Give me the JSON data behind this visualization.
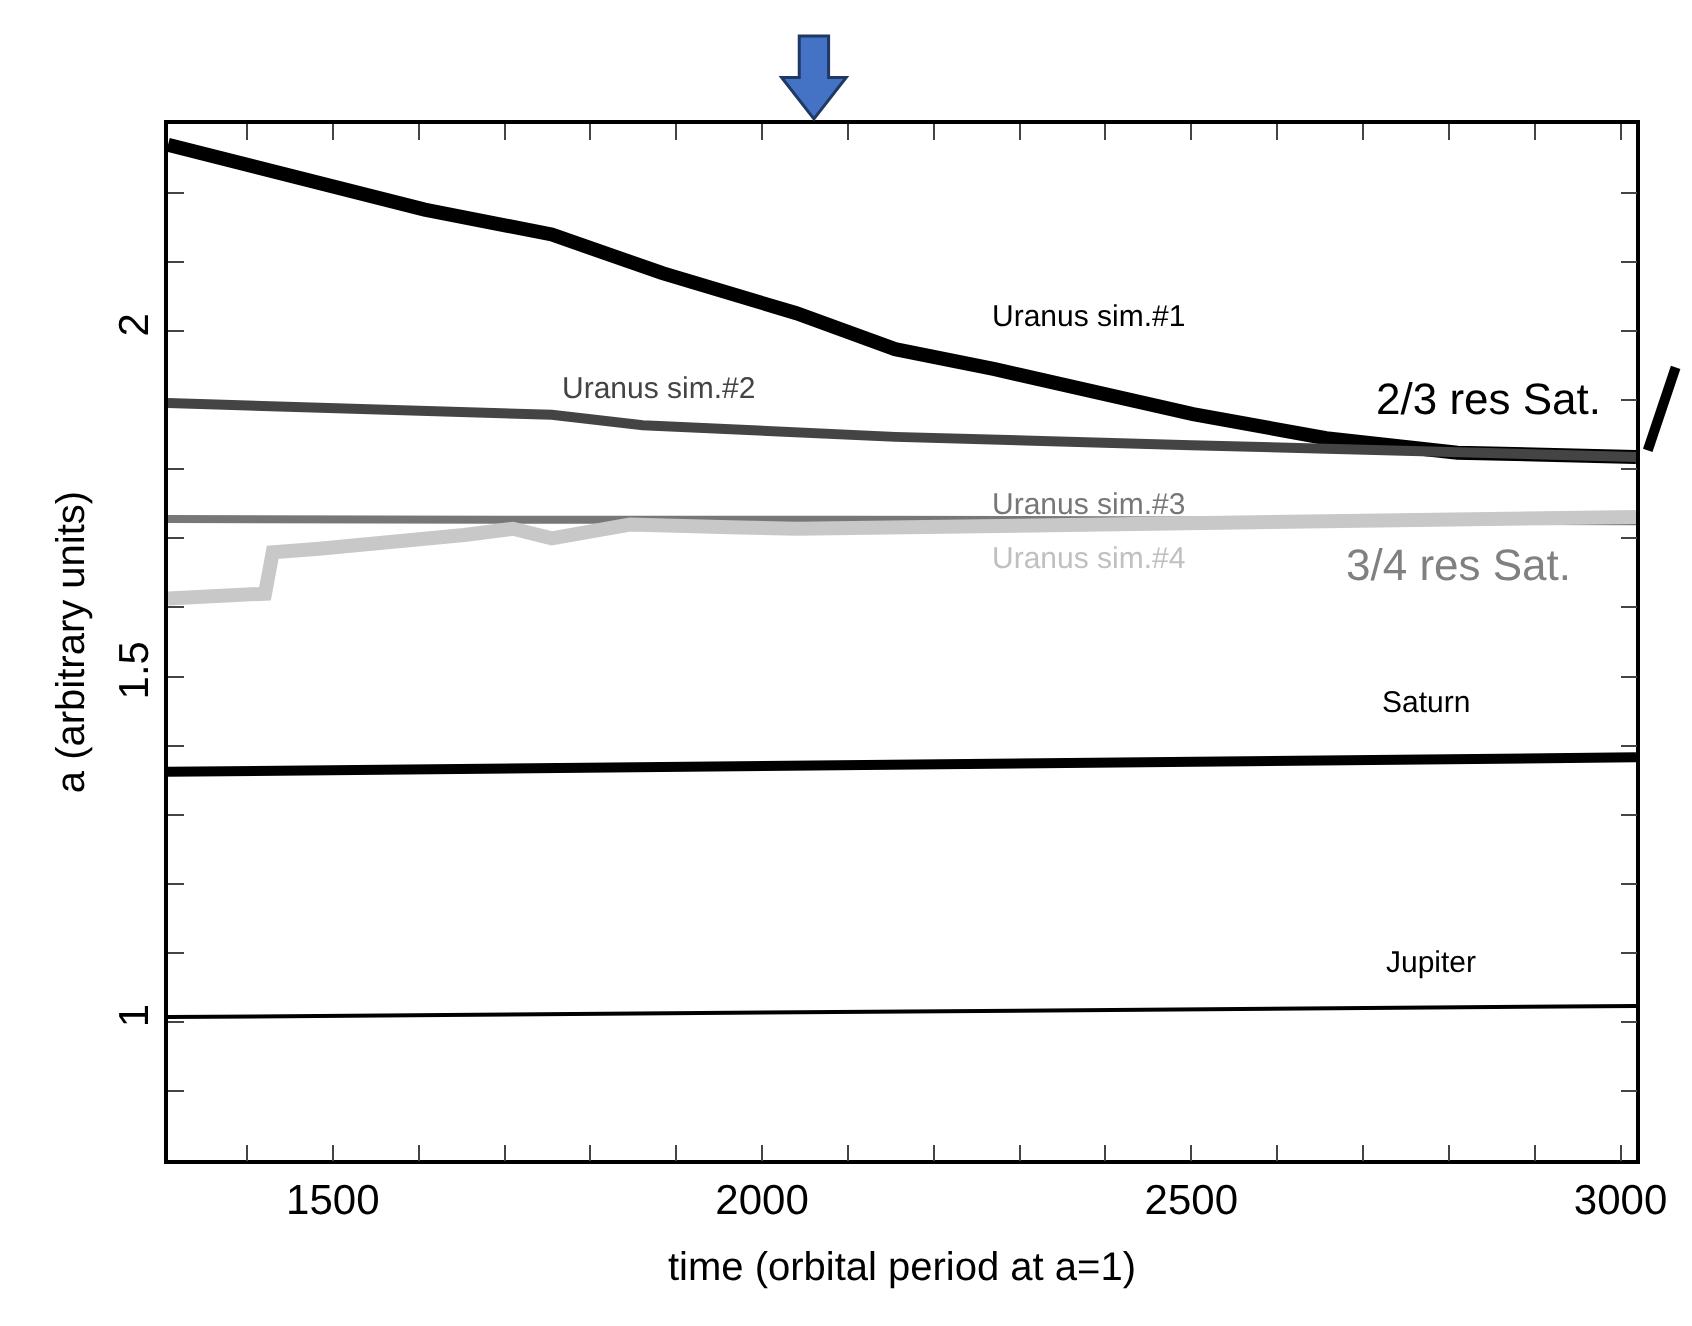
{
  "chart_data": {
    "type": "line",
    "xlabel": "time (orbital period at a=1)",
    "ylabel": "a (arbitrary units)",
    "xlim": [
      1308,
      3018
    ],
    "ylim": [
      0.8,
      2.3
    ],
    "xticks": [
      {
        "value": 1400,
        "label": null
      },
      1500,
      {
        "value": 1600,
        "label": null
      },
      {
        "value": 1700,
        "label": null
      },
      {
        "value": 1800,
        "label": null
      },
      {
        "value": 1900,
        "label": null
      },
      2000,
      {
        "value": 2100,
        "label": null
      },
      {
        "value": 2200,
        "label": null
      },
      {
        "value": 2300,
        "label": null
      },
      {
        "value": 2400,
        "label": null
      },
      2500,
      {
        "value": 2600,
        "label": null
      },
      {
        "value": 2700,
        "label": null
      },
      {
        "value": 2800,
        "label": null
      },
      {
        "value": 2900,
        "label": null
      },
      3000
    ],
    "yticks": [
      {
        "value": 0.9,
        "label": null
      },
      1,
      {
        "value": 1.1,
        "label": null
      },
      {
        "value": 1.2,
        "label": null
      },
      {
        "value": 1.3,
        "label": null
      },
      {
        "value": 1.4,
        "label": null
      },
      1.5,
      {
        "value": 1.6,
        "label": null
      },
      {
        "value": 1.7,
        "label": null
      },
      {
        "value": 1.8,
        "label": null
      },
      {
        "value": 1.9,
        "label": null
      },
      2,
      {
        "value": 2.1,
        "label": null
      },
      {
        "value": 2.2,
        "label": null
      }
    ],
    "legend": false,
    "marker": "none",
    "line_style": "solid",
    "series": [
      {
        "name": "Uranus sim.#1",
        "color": "#000000",
        "x": [
          1308,
          1607,
          1755,
          1884,
          2040,
          2155,
          2271,
          2502,
          2657,
          2810,
          3018
        ],
        "values": [
          2.27,
          2.176,
          2.14,
          2.084,
          2.026,
          1.974,
          1.945,
          1.88,
          1.845,
          1.824,
          1.818
        ]
      },
      {
        "name": "Uranus sim.#2",
        "color": "#444444",
        "x": [
          1308,
          1755,
          1861,
          2155,
          2500,
          3018
        ],
        "values": [
          1.896,
          1.879,
          1.864,
          1.847,
          1.835,
          1.818
        ]
      },
      {
        "name": "Uranus sim.#3",
        "color": "#777777",
        "x": [
          1308,
          1700,
          2100,
          2500,
          3018
        ],
        "values": [
          1.728,
          1.727,
          1.727,
          1.726,
          1.725
        ]
      },
      {
        "name": "Uranus sim.#4",
        "color": "#c8c8c8",
        "x": [
          1308,
          1421,
          1430,
          1484,
          1653,
          1710,
          1755,
          1846,
          1963,
          2040,
          3018
        ],
        "values": [
          1.613,
          1.62,
          1.68,
          1.685,
          1.705,
          1.714,
          1.7,
          1.72,
          1.716,
          1.714,
          1.731
        ]
      },
      {
        "name": "Saturn",
        "color": "#000000",
        "x": [
          1308,
          3018
        ],
        "values": [
          1.362,
          1.383
        ]
      },
      {
        "name": "Jupiter",
        "color": "#000000",
        "x": [
          1308,
          3018
        ],
        "values": [
          1.007,
          1.023
        ]
      }
    ],
    "annotations": [
      "2/3 res Sat.",
      "3/4 res Sat."
    ]
  }
}
